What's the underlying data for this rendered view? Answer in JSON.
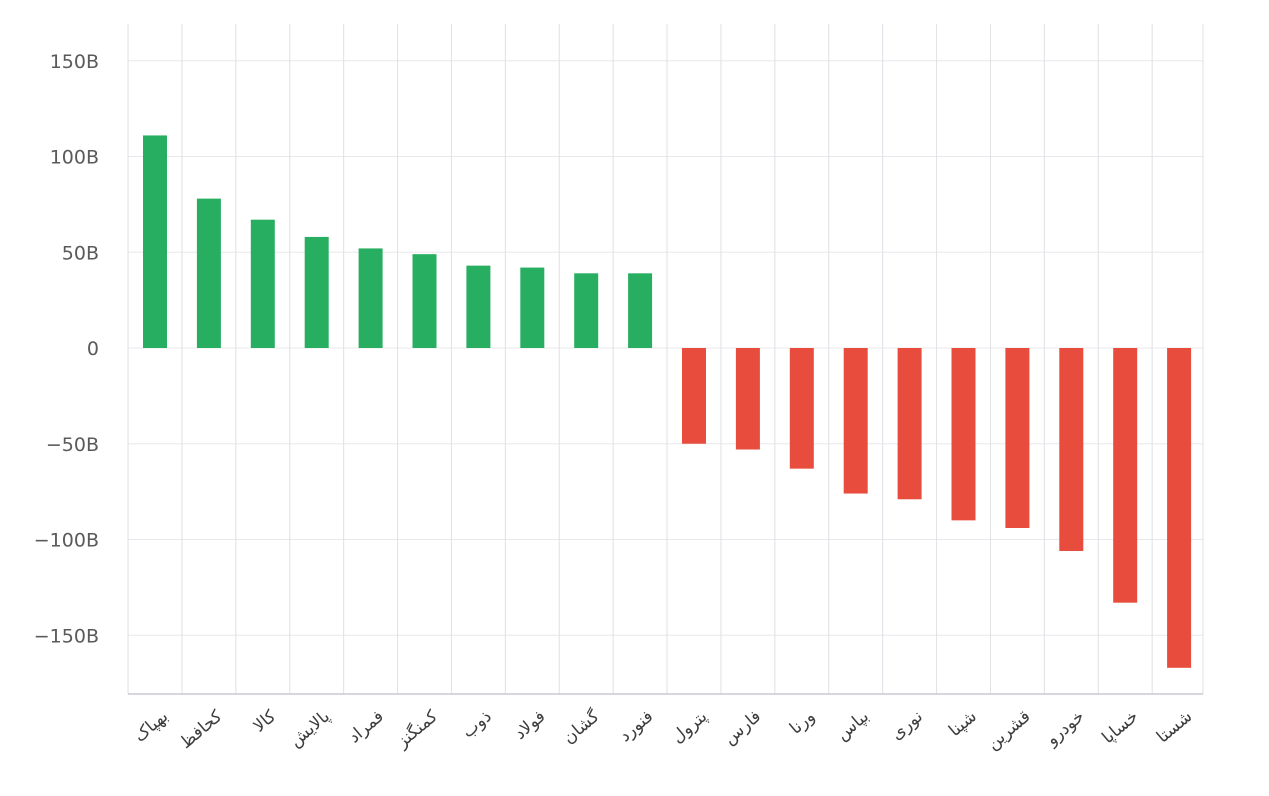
{
  "chart_data": {
    "type": "bar",
    "categories": [
      "بهپاک",
      "کحافظ",
      "کالا",
      "پالایش",
      "فمراد",
      "کمنگنز",
      "ذوب",
      "فولاد",
      "گشان",
      "فنورد",
      "پترول",
      "فارس",
      "ورنا",
      "بپاس",
      "نوری",
      "شپنا",
      "قشرین",
      "خودرو",
      "خساپا",
      "شستا"
    ],
    "values": [
      111,
      78,
      67,
      58,
      52,
      49,
      43,
      42,
      39,
      39,
      -50,
      -53,
      -63,
      -76,
      -79,
      -90,
      -94,
      -106,
      -133,
      -167
    ],
    "value_unit": "B",
    "yticks": [
      150,
      100,
      50,
      0,
      -50,
      -100,
      -150
    ],
    "ytick_labels": [
      "150B",
      "100B",
      "50B",
      "0",
      "−50B",
      "−100B",
      "−150B"
    ],
    "ylim": [
      -180,
      150
    ],
    "grid": true,
    "colors": {
      "positive": "#27ae60",
      "negative": "#e74c3c"
    },
    "title": "",
    "xlabel": "",
    "ylabel": ""
  }
}
